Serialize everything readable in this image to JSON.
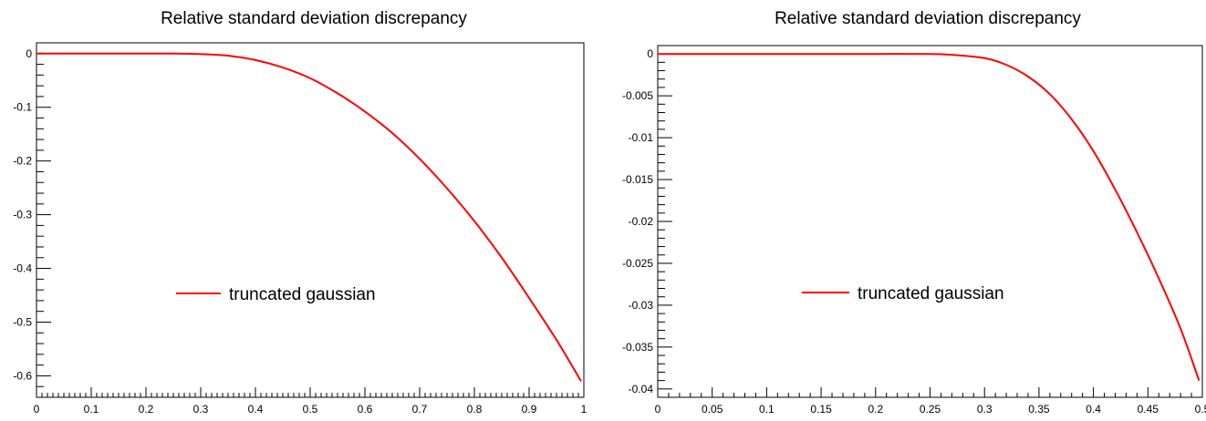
{
  "chart_data": [
    {
      "type": "line",
      "title": "Relative standard deviation discrepancy",
      "xlabel": "",
      "ylabel": "",
      "xlim": [
        0,
        1
      ],
      "ylim": [
        -0.64,
        0.02
      ],
      "grid": false,
      "legend_position": "center",
      "x_ticks": [
        "0",
        "0.1",
        "0.2",
        "0.3",
        "0.4",
        "0.5",
        "0.6",
        "0.7",
        "0.8",
        "0.9",
        "1"
      ],
      "y_ticks": [
        "0",
        "-0.1",
        "-0.2",
        "-0.3",
        "-0.4",
        "-0.5",
        "-0.6"
      ],
      "series": [
        {
          "name": "truncated gaussian",
          "color": "#ff0000",
          "x": [
            0,
            0.05,
            0.1,
            0.15,
            0.2,
            0.25,
            0.3,
            0.35,
            0.4,
            0.45,
            0.5,
            0.55,
            0.6,
            0.65,
            0.7,
            0.75,
            0.8,
            0.85,
            0.9,
            0.95,
            0.995
          ],
          "y": [
            0,
            0,
            0,
            0,
            0,
            0,
            -0.001,
            -0.004,
            -0.012,
            -0.026,
            -0.046,
            -0.074,
            -0.108,
            -0.148,
            -0.196,
            -0.251,
            -0.312,
            -0.38,
            -0.455,
            -0.533,
            -0.61
          ]
        }
      ]
    },
    {
      "type": "line",
      "title": "Relative standard deviation discrepancy",
      "xlabel": "",
      "ylabel": "",
      "xlim": [
        0,
        0.5
      ],
      "ylim": [
        -0.041,
        0.001
      ],
      "grid": false,
      "legend_position": "center",
      "x_ticks": [
        "0",
        "0.05",
        "0.1",
        "0.15",
        "0.2",
        "0.25",
        "0.3",
        "0.35",
        "0.4",
        "0.45",
        "0.5"
      ],
      "y_ticks": [
        "0",
        "-0.005",
        "-0.01",
        "-0.015",
        "-0.02",
        "-0.025",
        "-0.03",
        "-0.035",
        "-0.04"
      ],
      "series": [
        {
          "name": "truncated gaussian",
          "color": "#ff0000",
          "x": [
            0,
            0.05,
            0.1,
            0.15,
            0.2,
            0.25,
            0.27,
            0.3,
            0.32,
            0.34,
            0.36,
            0.38,
            0.4,
            0.42,
            0.44,
            0.46,
            0.48,
            0.497
          ],
          "y": [
            0,
            0,
            0,
            0,
            0,
            0,
            -0.0001,
            -0.0005,
            -0.0013,
            -0.0027,
            -0.0048,
            -0.0078,
            -0.0116,
            -0.0162,
            -0.0213,
            -0.0268,
            -0.0328,
            -0.039
          ]
        }
      ]
    }
  ]
}
